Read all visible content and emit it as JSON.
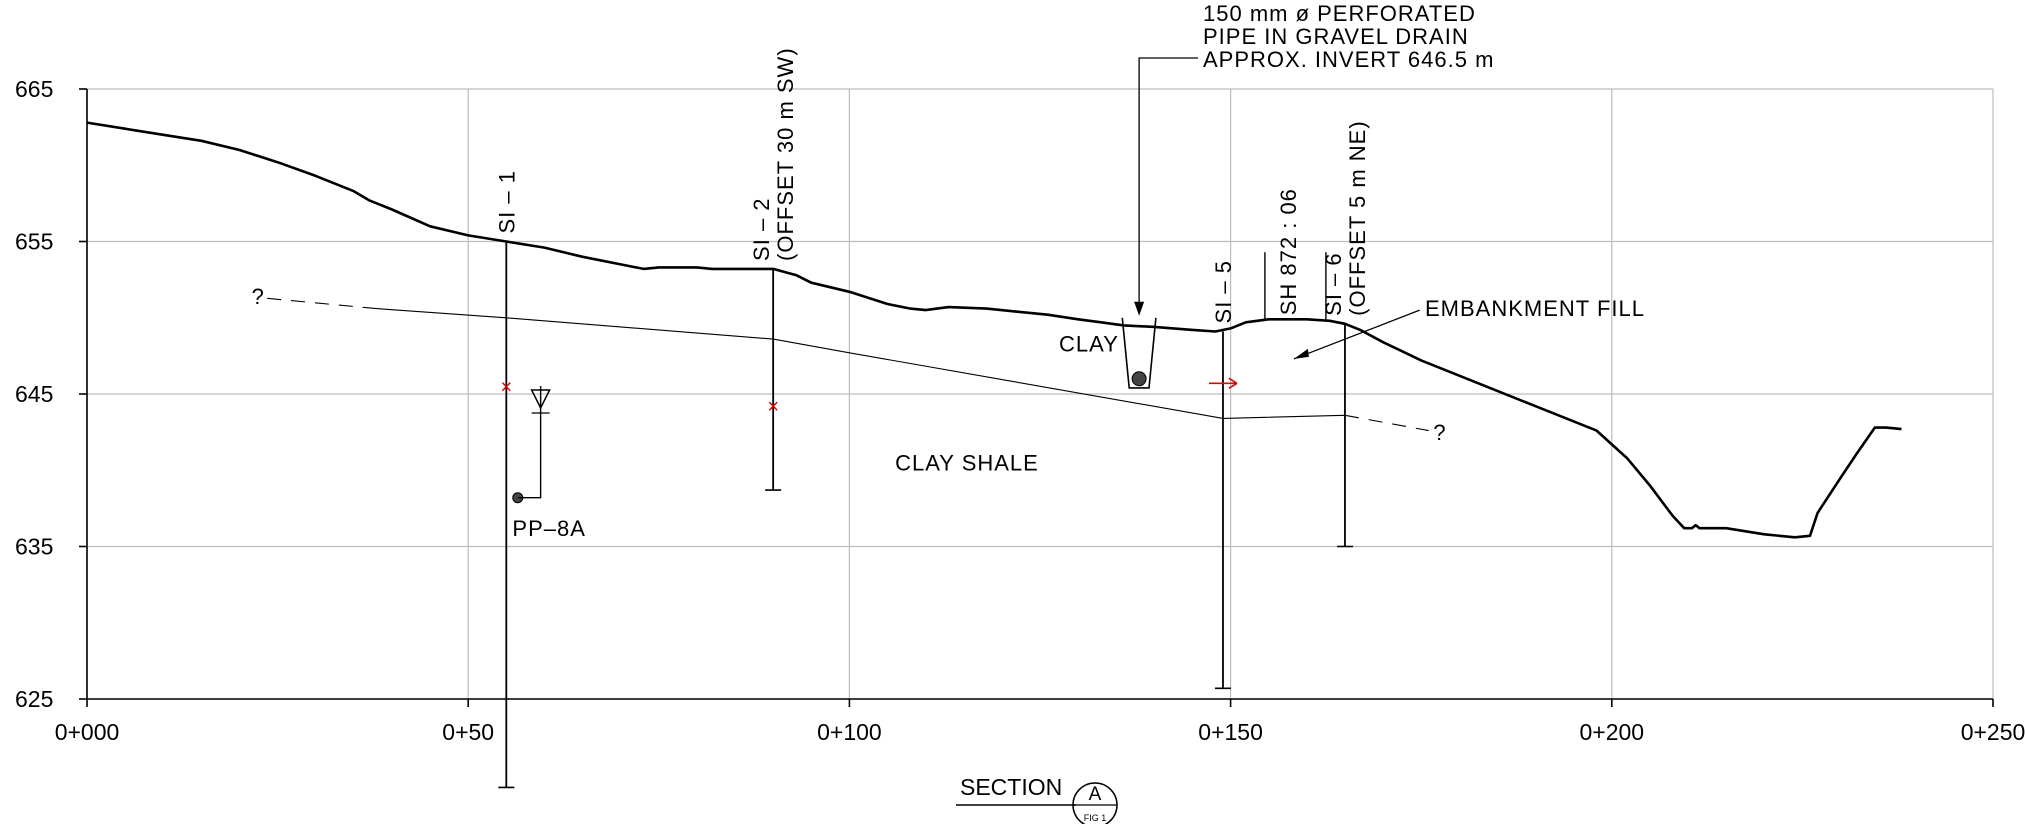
{
  "section": {
    "title": "SECTION",
    "ref_letter": "A",
    "ref_fig": "FIG 1"
  },
  "axes": {
    "y_ticks": [
      665,
      655,
      645,
      635,
      625
    ],
    "x_ticks": [
      "0+000",
      "0+50",
      "0+100",
      "0+150",
      "0+200",
      "0+250"
    ],
    "x_range": [
      0,
      250
    ],
    "y_range": [
      625,
      665
    ],
    "grid": true
  },
  "ground_surface": [
    [
      0,
      662.8
    ],
    [
      5,
      662.4
    ],
    [
      10,
      662.0
    ],
    [
      15,
      661.6
    ],
    [
      20,
      661.0
    ],
    [
      25,
      660.2
    ],
    [
      30,
      659.3
    ],
    [
      35,
      658.3
    ],
    [
      37,
      657.7
    ],
    [
      40,
      657.1
    ],
    [
      45,
      656.0
    ],
    [
      50,
      655.4
    ],
    [
      55,
      655.0
    ],
    [
      60,
      654.6
    ],
    [
      65,
      654.0
    ],
    [
      70,
      653.5
    ],
    [
      73,
      653.2
    ],
    [
      75,
      653.3
    ],
    [
      80,
      653.3
    ],
    [
      82,
      653.2
    ],
    [
      85,
      653.2
    ],
    [
      90,
      653.2
    ],
    [
      93,
      652.8
    ],
    [
      95,
      652.3
    ],
    [
      100,
      651.7
    ],
    [
      105,
      650.9
    ],
    [
      108,
      650.6
    ],
    [
      110,
      650.5
    ],
    [
      113,
      650.7
    ],
    [
      118,
      650.6
    ],
    [
      122,
      650.4
    ],
    [
      126,
      650.2
    ],
    [
      130,
      649.9
    ],
    [
      133,
      649.7
    ],
    [
      136,
      649.5
    ],
    [
      140,
      649.4
    ],
    [
      145,
      649.2
    ],
    [
      148,
      649.1
    ],
    [
      150,
      649.3
    ],
    [
      152,
      649.7
    ],
    [
      155,
      649.9
    ],
    [
      160,
      649.9
    ],
    [
      163,
      649.8
    ],
    [
      165,
      649.6
    ],
    [
      167,
      649.2
    ],
    [
      170,
      648.4
    ],
    [
      175,
      647.2
    ],
    [
      180,
      646.2
    ],
    [
      190,
      644.2
    ],
    [
      198,
      642.6
    ],
    [
      202,
      640.8
    ],
    [
      205,
      639.0
    ],
    [
      208,
      637.0
    ],
    [
      209.5,
      636.2
    ],
    [
      210.5,
      636.2
    ],
    [
      211,
      636.4
    ],
    [
      211.5,
      636.2
    ],
    [
      215,
      636.2
    ],
    [
      220,
      635.8
    ],
    [
      224,
      635.6
    ],
    [
      226,
      635.7
    ],
    [
      227,
      637.2
    ],
    [
      230,
      639.5
    ],
    [
      232,
      641.0
    ],
    [
      234.5,
      642.8
    ],
    [
      236,
      642.8
    ],
    [
      238,
      642.7
    ]
  ],
  "clay_shale_contact": [
    [
      38,
      650.6
    ],
    [
      55,
      650.0
    ],
    [
      90,
      648.6
    ],
    [
      100,
      647.7
    ],
    [
      149,
      643.4
    ],
    [
      165,
      643.6
    ]
  ],
  "contact_dashed_left": [
    [
      38,
      650.6
    ],
    [
      23,
      651.3
    ]
  ],
  "contact_dashed_right": [
    [
      165,
      643.6
    ],
    [
      176,
      642.6
    ]
  ],
  "boreholes": [
    {
      "label": "SI – 1",
      "sub": "",
      "station": 55,
      "top": 655.0,
      "bottom": 619.2
    },
    {
      "label": "SI – 2",
      "sub": "(OFFSET 30 m SW)",
      "station": 90,
      "top": 653.2,
      "bottom": 638.7
    },
    {
      "label": "SI – 5",
      "sub": "",
      "station": 149,
      "top": 649.1,
      "bottom": 625.7
    },
    {
      "label": "SI – 6",
      "sub": "(OFFSET 5 m NE)",
      "station": 165,
      "top": 649.6,
      "bottom": 635.0
    }
  ],
  "sh_label": "SH 872 : 06",
  "geology_labels": {
    "clay": "CLAY",
    "clay_shale": "CLAY SHALE",
    "embankment": "EMBANKMENT FILL",
    "question_left": "?",
    "question_right": "?"
  },
  "piezometer": {
    "label": "PP–8A",
    "station": 56.5,
    "tip": 638.2,
    "water_level": 645.0
  },
  "shear_markers": [
    {
      "station": 55,
      "elev": 645.5,
      "symbol": "×"
    },
    {
      "station": 90,
      "elev": 644.2,
      "symbol": "×"
    }
  ],
  "movement_arrow": {
    "station": 149,
    "elev": 645.7
  },
  "drain_note": {
    "lines": [
      "150  mm    ø  PERFORATED",
      "PIPE  IN  GRAVEL  DRAIN",
      "APPROX.  INVERT  646.5  m"
    ],
    "pipe_station": 138,
    "pipe_elev": 646.0
  },
  "colors": {
    "line": "#000000",
    "grid": "#bdbdbd",
    "marker": "#e00000",
    "pipe": "#444444"
  }
}
